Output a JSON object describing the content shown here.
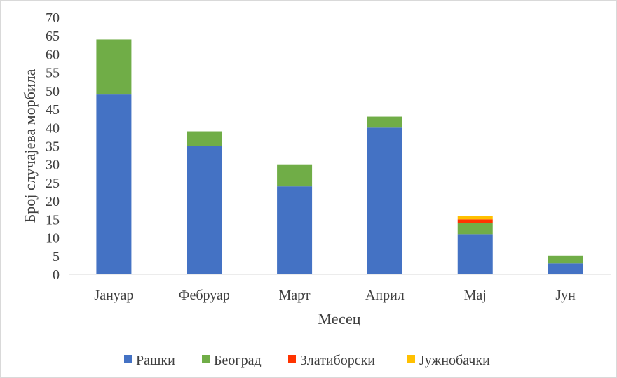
{
  "chart_data": {
    "type": "bar",
    "stacked": true,
    "categories": [
      "Јануар",
      "Фебруар",
      "Март",
      "Април",
      "Мај",
      "Јун"
    ],
    "series": [
      {
        "name": "Рашки",
        "color": "#4472C4",
        "values": [
          49,
          35,
          24,
          40,
          11,
          3
        ]
      },
      {
        "name": "Београд",
        "color": "#70AD47",
        "values": [
          15,
          4,
          6,
          3,
          3,
          2
        ]
      },
      {
        "name": "Златиборски",
        "color": "#FF3300",
        "values": [
          0,
          0,
          0,
          0,
          1,
          0
        ]
      },
      {
        "name": "Јужнобачки",
        "color": "#FFC000",
        "values": [
          0,
          0,
          0,
          0,
          1,
          0
        ]
      }
    ],
    "title": "",
    "xlabel": "Месец",
    "ylabel": "Број случајева морбила",
    "ylim": [
      0,
      70
    ],
    "ytick_step": 5,
    "grid": false,
    "legend_position": "bottom"
  }
}
